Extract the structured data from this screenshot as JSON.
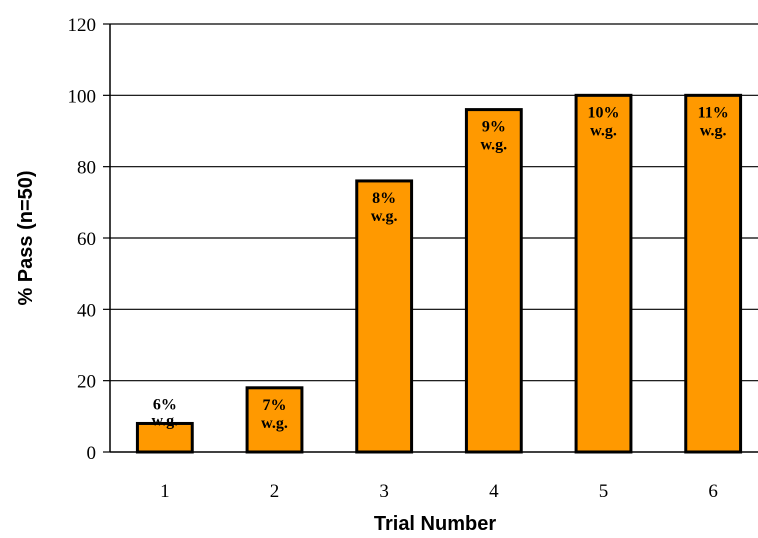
{
  "chart_data": {
    "type": "bar",
    "title": "",
    "xlabel": "Trial Number",
    "ylabel": "% Pass (n=50)",
    "categories": [
      "1",
      "2",
      "3",
      "4",
      "5",
      "6"
    ],
    "values": [
      8,
      18,
      76,
      96,
      100,
      100
    ],
    "bar_labels": [
      [
        "6%",
        "w.g."
      ],
      [
        "7%",
        "w.g."
      ],
      [
        "8%",
        "w.g."
      ],
      [
        "9%",
        "w.g."
      ],
      [
        "10%",
        "w.g."
      ],
      [
        "11%",
        "w.g."
      ]
    ],
    "y_ticks": [
      "0",
      "20",
      "40",
      "60",
      "80",
      "100",
      "120"
    ],
    "ylim": [
      0,
      120
    ],
    "grid": true,
    "legend": false,
    "bar_color": "#FF9900",
    "bar_edge_color": "#000000"
  }
}
